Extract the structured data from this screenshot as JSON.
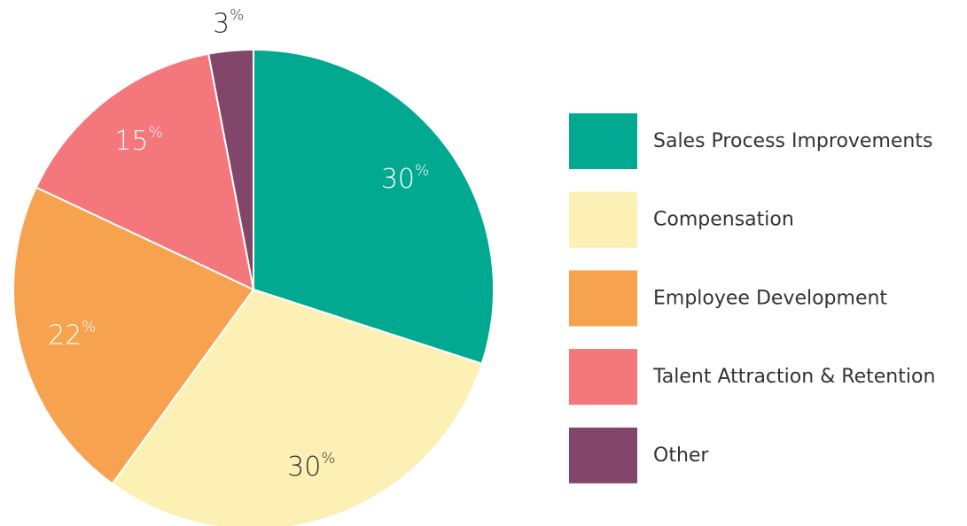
{
  "chart_data": {
    "type": "pie",
    "categories": [
      "Sales Process Improvements",
      "Compensation",
      "Employee Development",
      "Talent Attraction & Retention",
      "Other"
    ],
    "values": [
      30,
      30,
      22,
      15,
      3
    ],
    "value_labels": [
      "30%",
      "30%",
      "22%",
      "15%",
      "3%"
    ],
    "colors": [
      "#00a990",
      "#fdf0b5",
      "#f7a24f",
      "#f4777c",
      "#82466b"
    ],
    "legend": "right"
  }
}
